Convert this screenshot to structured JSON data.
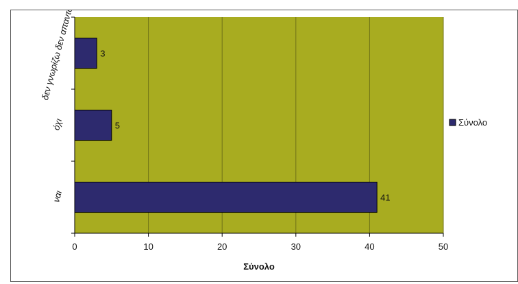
{
  "chart_data": {
    "type": "bar",
    "orientation": "horizontal",
    "categories": [
      "ναι",
      "όχι",
      "δεν γνωρίζω δεν απαντώ"
    ],
    "category_tick_labels": [
      "ναι",
      "όχι",
      "δεν γνωρίζω δεν απαντώ"
    ],
    "series": [
      {
        "name": "Σύνολο",
        "values": [
          41,
          5,
          3
        ]
      }
    ],
    "data_labels": [
      "41",
      "5",
      "3"
    ],
    "xlabel": "Σύνολο",
    "ylabel": "",
    "xlim": [
      0,
      50
    ],
    "x_ticks": [
      0,
      10,
      20,
      30,
      40,
      50
    ],
    "grid": true,
    "legend": {
      "position": "right",
      "entries": [
        "Σύνολο"
      ]
    },
    "colors": {
      "plot_background": "#a8ac20",
      "bar": "#2d2a6e",
      "bar_edge": "#000000",
      "gridline": "#6f7218",
      "axis": "#000000"
    }
  }
}
